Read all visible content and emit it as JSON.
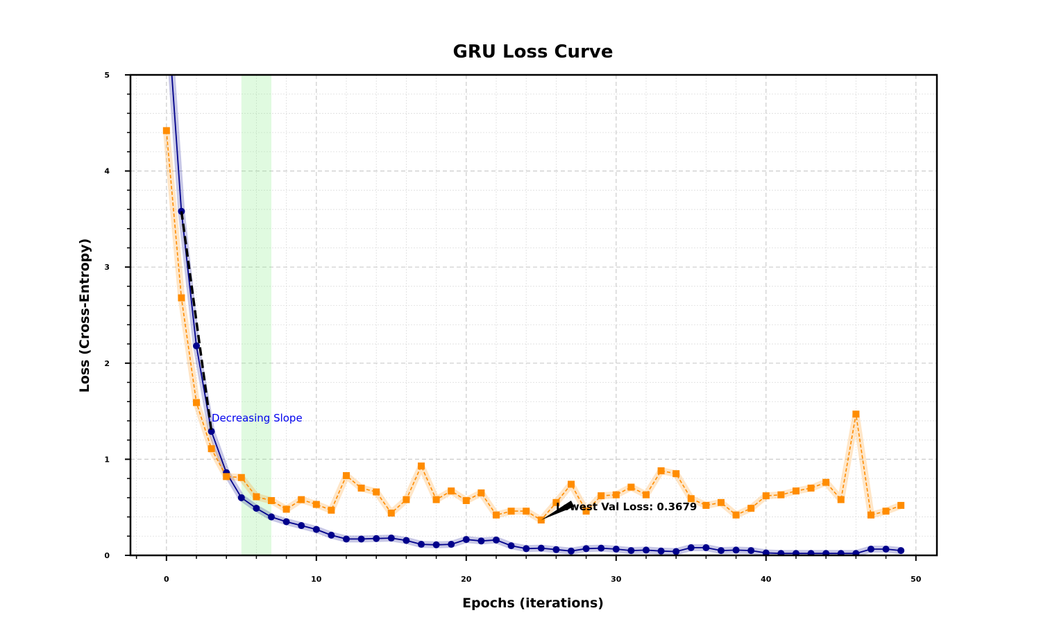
{
  "chart_data": {
    "type": "line",
    "title": "GRU Loss Curve",
    "xlabel": "Epochs (iterations)",
    "ylabel": "Loss (Cross-Entropy)",
    "xlim": [
      -2.4,
      51.4
    ],
    "ylim": [
      0,
      5
    ],
    "xticks": [
      0,
      10,
      20,
      30,
      40,
      50
    ],
    "yticks": [
      0,
      1,
      2,
      3,
      4,
      5
    ],
    "grid": true,
    "x": [
      0,
      1,
      2,
      3,
      4,
      5,
      6,
      7,
      8,
      9,
      10,
      11,
      12,
      13,
      14,
      15,
      16,
      17,
      18,
      19,
      20,
      21,
      22,
      23,
      24,
      25,
      26,
      27,
      28,
      29,
      30,
      31,
      32,
      33,
      34,
      35,
      36,
      37,
      38,
      39,
      40,
      41,
      42,
      43,
      44,
      45,
      46,
      47,
      48,
      49
    ],
    "series": [
      {
        "key": "train",
        "color": "#00008b",
        "marker": "circle",
        "linestyle": "solid",
        "values": [
          5.8,
          3.58,
          2.18,
          1.29,
          0.86,
          0.6,
          0.49,
          0.4,
          0.35,
          0.31,
          0.27,
          0.21,
          0.17,
          0.17,
          0.175,
          0.18,
          0.155,
          0.115,
          0.11,
          0.115,
          0.165,
          0.15,
          0.16,
          0.1,
          0.07,
          0.075,
          0.06,
          0.045,
          0.07,
          0.075,
          0.065,
          0.05,
          0.055,
          0.045,
          0.04,
          0.08,
          0.08,
          0.05,
          0.055,
          0.05,
          0.025,
          0.02,
          0.02,
          0.02,
          0.02,
          0.02,
          0.02,
          0.065,
          0.065,
          0.05
        ]
      },
      {
        "key": "val",
        "color": "#ff8c00",
        "marker": "square",
        "linestyle": "dashed",
        "values": [
          4.42,
          2.68,
          1.59,
          1.11,
          0.82,
          0.81,
          0.61,
          0.57,
          0.48,
          0.58,
          0.53,
          0.47,
          0.83,
          0.7,
          0.66,
          0.44,
          0.58,
          0.93,
          0.58,
          0.67,
          0.57,
          0.65,
          0.42,
          0.46,
          0.46,
          0.3679,
          0.55,
          0.74,
          0.46,
          0.62,
          0.63,
          0.71,
          0.63,
          0.88,
          0.85,
          0.59,
          0.52,
          0.55,
          0.42,
          0.49,
          0.62,
          0.63,
          0.67,
          0.7,
          0.76,
          0.58,
          1.47,
          0.42,
          0.46,
          0.52
        ]
      }
    ],
    "shaded_region": {
      "x_start": 5,
      "x_end": 7,
      "color": "#90ee90"
    },
    "slope_line": {
      "x": [
        1,
        3
      ],
      "y": [
        3.58,
        1.29
      ]
    },
    "annotations": {
      "slope_label": "Decreasing Slope",
      "lowest_val": {
        "text": "Lowest Val Loss: 0.3679",
        "x": 25,
        "y": 0.3679
      }
    }
  }
}
